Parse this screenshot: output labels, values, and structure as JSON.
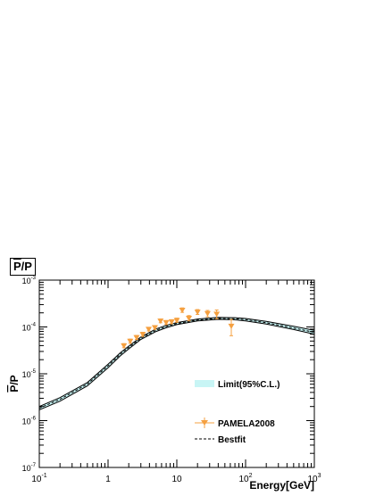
{
  "chart_data": {
    "type": "line",
    "title_main": "P",
    "title_suffix": "/P",
    "xlabel": "Energy[GeV]",
    "ylabel_main": "P",
    "ylabel_suffix": "/P",
    "xscale": "log",
    "yscale": "log",
    "xlim": [
      0.1,
      1000
    ],
    "ylim": [
      1e-07,
      0.001
    ],
    "x_ticks": [
      {
        "base": "10",
        "exp": "-1",
        "value": 0.1
      },
      {
        "base": "1",
        "exp": "",
        "value": 1
      },
      {
        "base": "10",
        "exp": "",
        "value": 10
      },
      {
        "base": "10",
        "exp": "2",
        "value": 100
      },
      {
        "base": "10",
        "exp": "3",
        "value": 1000
      }
    ],
    "y_ticks": [
      {
        "base": "10",
        "exp": "-7",
        "value": 1e-07
      },
      {
        "base": "10",
        "exp": "-6",
        "value": 1e-06
      },
      {
        "base": "10",
        "exp": "-5",
        "value": 1e-05
      },
      {
        "base": "10",
        "exp": "-4",
        "value": 0.0001
      },
      {
        "base": "10",
        "exp": "-3",
        "value": 0.001
      }
    ],
    "legend_position": "bottom-right",
    "legend": [
      {
        "label": "Limit(95%C.L.)",
        "style": "band",
        "color": "#c8f5f5"
      },
      {
        "label": "PAMELA2008",
        "style": "marker",
        "color": "#f5a040"
      },
      {
        "label": "Bestfit",
        "style": "dashed",
        "color": "#000000"
      }
    ],
    "band": {
      "name": "Limit(95%C.L.)",
      "color": "#c8f5f5",
      "x": [
        0.1,
        0.2,
        0.5,
        1,
        1.5,
        2,
        3,
        5,
        7,
        10,
        20,
        40,
        70,
        100,
        200,
        500,
        1000
      ],
      "lower": [
        1.7e-06,
        2.6e-06,
        5.5e-06,
        1.35e-05,
        2.4e-05,
        3.4e-05,
        5.4e-05,
        8e-05,
        9.6e-05,
        0.000112,
        0.000135,
        0.000145,
        0.000142,
        0.000135,
        0.000115,
        8.8e-05,
        7e-05
      ],
      "upper": [
        2e-06,
        3.1e-06,
        6.5e-06,
        1.6e-05,
        2.8e-05,
        3.9e-05,
        6.1e-05,
        9.1e-05,
        0.000108,
        0.000124,
        0.000148,
        0.00016,
        0.000158,
        0.000152,
        0.000132,
        0.000103,
        8.5e-05
      ]
    },
    "series": [
      {
        "name": "Bestfit",
        "style": "dashed",
        "color": "#000000",
        "x": [
          0.1,
          0.2,
          0.5,
          1,
          1.5,
          2,
          3,
          5,
          7,
          10,
          20,
          40,
          70,
          100,
          200,
          500,
          1000
        ],
        "y": [
          1.85e-06,
          2.85e-06,
          6e-06,
          1.48e-05,
          2.6e-05,
          3.65e-05,
          5.75e-05,
          8.5e-05,
          0.000102,
          0.000118,
          0.000141,
          0.000152,
          0.00015,
          0.000143,
          0.000123,
          9.5e-05,
          7.7e-05
        ]
      },
      {
        "name": "PAMELA2008",
        "style": "marker",
        "color": "#f5a040",
        "x": [
          1.7,
          2.1,
          2.6,
          3.2,
          3.9,
          4.8,
          5.8,
          7.0,
          8.4,
          10.0,
          12.0,
          15.0,
          20.0,
          28.0,
          38.0,
          62.0
        ],
        "y": [
          4e-05,
          5e-05,
          6e-05,
          7e-05,
          9e-05,
          9.8e-05,
          0.000135,
          0.000125,
          0.00013,
          0.00014,
          0.00023,
          0.000155,
          0.00021,
          0.000195,
          0.00019,
          0.000105
        ],
        "yerr": [
          4e-06,
          5e-06,
          6e-06,
          7e-06,
          8e-06,
          9e-06,
          1.2e-05,
          1.2e-05,
          1.3e-05,
          1.4e-05,
          2.5e-05,
          2e-05,
          2.5e-05,
          3e-05,
          4e-05,
          4e-05
        ]
      }
    ]
  }
}
